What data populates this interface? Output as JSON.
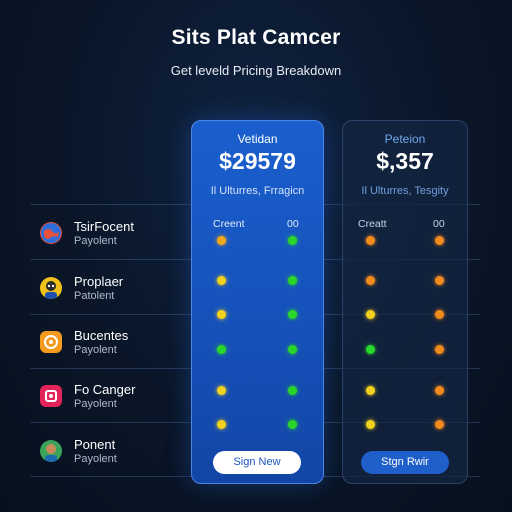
{
  "header": {
    "title": "Sits Plat Camcer",
    "subtitle": "Get leveld Pricing Breakdown"
  },
  "rows": [
    {
      "name": "TsirFocent",
      "sub": "Payolent",
      "icon": "globe-icon",
      "icon_color": "#e8513b"
    },
    {
      "name": "Proplaer",
      "sub": "Patolent",
      "icon": "avatar-icon",
      "icon_color": "#f2c21b"
    },
    {
      "name": "Bucentes",
      "sub": "Payolent",
      "icon": "app-icon",
      "icon_color": "#f39a1f"
    },
    {
      "name": "Fo Canger",
      "sub": "Payolent",
      "icon": "app-icon",
      "icon_color": "#e3245a"
    },
    {
      "name": "Ponent",
      "sub": "Payolent",
      "icon": "avatar-icon",
      "icon_color": "#3aa55a"
    }
  ],
  "plans": [
    {
      "name": "Vetidan",
      "price": "$29579",
      "features": "Il Ulturres, Frragicn",
      "col_left": "Creent",
      "col_right": "00",
      "button": "Sign New",
      "highlighted": true,
      "dots": [
        [
          "#f2a91c",
          "#2bd62b"
        ],
        [
          "#f2d21c",
          "#2bd62b"
        ],
        [
          "#f2d21c",
          "#2bd62b"
        ],
        [
          "#2bd62b",
          "#2bd62b"
        ],
        [
          "#f2d21c",
          "#2bd62b"
        ],
        [
          "#f2d21c",
          "#2bd62b"
        ]
      ]
    },
    {
      "name": "Peteion",
      "price": "$,357",
      "features": "Il Ulturres, Tesgity",
      "col_left": "Creatt",
      "col_right": "00",
      "button": "Stgn Rwir",
      "highlighted": false,
      "dots": [
        [
          "#f28a1c",
          "#f28a1c"
        ],
        [
          "#f28a1c",
          "#f28a1c"
        ],
        [
          "#f2d21c",
          "#f28a1c"
        ],
        [
          "#2bd62b",
          "#f28a1c"
        ],
        [
          "#f2d21c",
          "#f28a1c"
        ],
        [
          "#f2d21c",
          "#f28a1c"
        ]
      ]
    }
  ]
}
